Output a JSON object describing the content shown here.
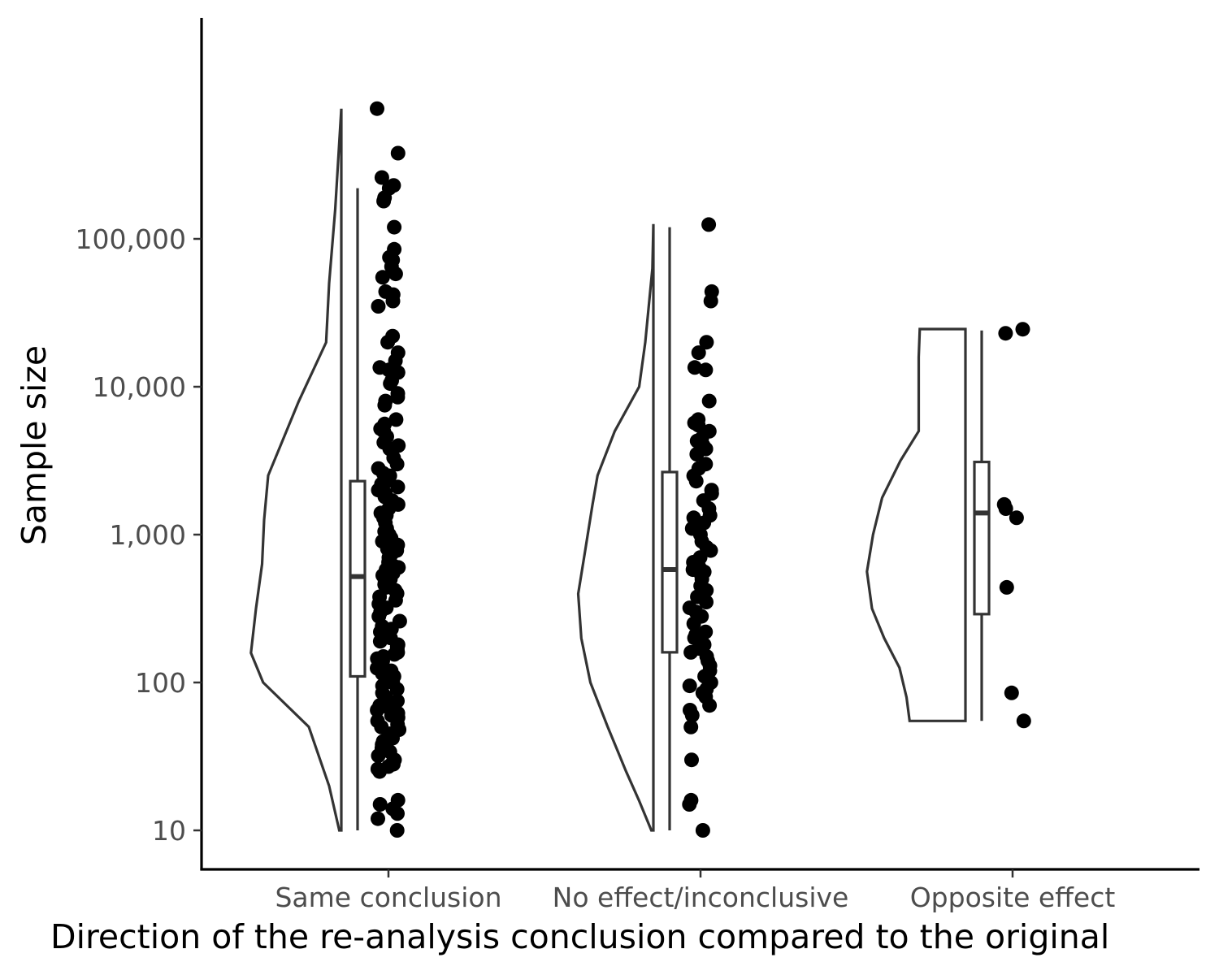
{
  "chart_data": {
    "type": "raincloud",
    "xlabel": "Direction of the re-analysis conclusion compared to the original",
    "ylabel": "Sample size",
    "y_scale": "log10",
    "ylim": [
      10,
      1000000
    ],
    "y_ticks": [
      {
        "value": 10,
        "label": "10"
      },
      {
        "value": 100,
        "label": "100"
      },
      {
        "value": 1000,
        "label": "1,000"
      },
      {
        "value": 10000,
        "label": "10,000"
      },
      {
        "value": 100000,
        "label": "100,000"
      }
    ],
    "grid": false,
    "legend": "none",
    "colors": {
      "points": "#000000",
      "outline": "#333333",
      "axis": "#000000",
      "tick_text": "#4d4d4d"
    },
    "categories": [
      "Same conclusion",
      "No effect/inconclusive",
      "Opposite effect"
    ],
    "groups": [
      {
        "category": "Same conclusion",
        "box": {
          "min": 10,
          "q1": 110,
          "median": 520,
          "q3": 2300,
          "max": 220000
        },
        "violin_range": [
          10,
          760000
        ],
        "violin_profile": [
          [
            1.0,
            0.02
          ],
          [
            1.3,
            0.12
          ],
          [
            1.7,
            0.32
          ],
          [
            2.0,
            0.77
          ],
          [
            2.2,
            0.89
          ],
          [
            2.5,
            0.84
          ],
          [
            2.8,
            0.78
          ],
          [
            3.1,
            0.76
          ],
          [
            3.4,
            0.72
          ],
          [
            3.6,
            0.6
          ],
          [
            3.9,
            0.42
          ],
          [
            4.3,
            0.15
          ],
          [
            4.7,
            0.12
          ],
          [
            5.2,
            0.06
          ],
          [
            5.88,
            0.0
          ]
        ],
        "points": [
          760000,
          380000,
          180000,
          260000,
          230000,
          220000,
          190000,
          120000,
          85000,
          75000,
          72000,
          65000,
          58000,
          55000,
          44000,
          42000,
          38000,
          35000,
          22000,
          20000,
          17000,
          15000,
          13500,
          13000,
          12500,
          12000,
          11000,
          10500,
          9000,
          8500,
          8000,
          7500,
          6000,
          5600,
          5200,
          5000,
          4600,
          4200,
          4000,
          3800,
          3300,
          3000,
          2800,
          2600,
          2500,
          2400,
          2300,
          2200,
          2100,
          2000,
          1900,
          1800,
          1700,
          1600,
          1500,
          1400,
          1350,
          1300,
          1200,
          1100,
          1050,
          1000,
          950,
          900,
          850,
          800,
          780,
          760,
          740,
          700,
          650,
          620,
          600,
          580,
          550,
          530,
          500,
          480,
          460,
          440,
          420,
          400,
          380,
          360,
          340,
          320,
          300,
          280,
          260,
          240,
          230,
          220,
          210,
          200,
          190,
          180,
          175,
          170,
          165,
          160,
          155,
          150,
          145,
          140,
          130,
          125,
          120,
          115,
          110,
          105,
          100,
          95,
          90,
          85,
          80,
          75,
          70,
          68,
          65,
          62,
          60,
          58,
          55,
          52,
          50,
          48,
          45,
          42,
          40,
          38,
          36,
          34,
          32,
          30,
          29,
          28,
          27,
          26,
          25,
          16,
          15,
          14,
          13,
          12,
          10
        ]
      },
      {
        "category": "No effect/inconclusive",
        "box": {
          "min": 10,
          "q1": 160,
          "median": 580,
          "q3": 2650,
          "max": 120000
        },
        "violin_range": [
          10,
          125000
        ],
        "violin_profile": [
          [
            1.0,
            0.02
          ],
          [
            1.2,
            0.14
          ],
          [
            1.4,
            0.27
          ],
          [
            1.7,
            0.45
          ],
          [
            2.0,
            0.62
          ],
          [
            2.3,
            0.71
          ],
          [
            2.6,
            0.74
          ],
          [
            2.9,
            0.67
          ],
          [
            3.2,
            0.6
          ],
          [
            3.4,
            0.55
          ],
          [
            3.7,
            0.38
          ],
          [
            4.0,
            0.14
          ],
          [
            4.3,
            0.08
          ],
          [
            4.8,
            0.01
          ],
          [
            5.1,
            0.0
          ]
        ],
        "points": [
          125000,
          44000,
          38000,
          20000,
          17000,
          13500,
          13000,
          8000,
          6000,
          5700,
          5500,
          5000,
          4500,
          4300,
          4000,
          3800,
          3500,
          3000,
          2800,
          2500,
          2300,
          2000,
          1900,
          1700,
          1500,
          1350,
          1300,
          1200,
          1100,
          1000,
          900,
          820,
          780,
          700,
          650,
          600,
          580,
          560,
          540,
          500,
          450,
          420,
          380,
          350,
          320,
          300,
          280,
          250,
          220,
          210,
          200,
          180,
          170,
          160,
          150,
          140,
          130,
          120,
          110,
          100,
          95,
          90,
          85,
          80,
          70,
          65,
          60,
          50,
          30,
          16,
          15,
          10
        ]
      },
      {
        "category": "Opposite effect",
        "box": {
          "min": 55,
          "q1": 290,
          "median": 1400,
          "q3": 3100,
          "max": 24000
        },
        "violin_range": [
          55,
          24500
        ],
        "violin_profile": [
          [
            1.74,
            0.55
          ],
          [
            1.9,
            0.58
          ],
          [
            2.1,
            0.65
          ],
          [
            2.3,
            0.8
          ],
          [
            2.5,
            0.92
          ],
          [
            2.75,
            0.97
          ],
          [
            3.0,
            0.91
          ],
          [
            3.25,
            0.82
          ],
          [
            3.5,
            0.64
          ],
          [
            3.7,
            0.46
          ],
          [
            3.8,
            0.46
          ],
          [
            3.95,
            0.46
          ],
          [
            4.1,
            0.46
          ],
          [
            4.2,
            0.46
          ],
          [
            4.39,
            0.45
          ]
        ],
        "points": [
          24500,
          23000,
          1600,
          1500,
          1300,
          440,
          85,
          55
        ]
      }
    ]
  }
}
